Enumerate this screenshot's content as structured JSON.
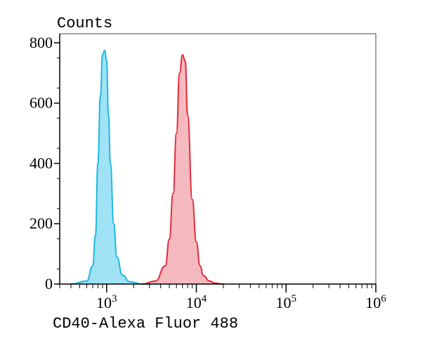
{
  "chart_data": {
    "type": "area",
    "title": "",
    "ylabel": "Counts",
    "xlabel": "CD40-Alexa Fluor 488",
    "x_scale": "log",
    "xlim": [
      300,
      1000000
    ],
    "ylim": [
      0,
      830
    ],
    "y_ticks": [
      {
        "value": 0,
        "label": "0"
      },
      {
        "value": 200,
        "label": "200"
      },
      {
        "value": 400,
        "label": "400"
      },
      {
        "value": 600,
        "label": "600"
      },
      {
        "value": 800,
        "label": "800"
      }
    ],
    "x_ticks": [
      {
        "value": 1000,
        "base": "10",
        "exp": "3"
      },
      {
        "value": 10000,
        "base": "10",
        "exp": "4"
      },
      {
        "value": 100000,
        "base": "10",
        "exp": "5"
      },
      {
        "value": 1000000,
        "base": "10",
        "exp": "6"
      }
    ],
    "grid": false,
    "legend": "none",
    "series": [
      {
        "color": "#1fb8e0",
        "fill": "#7fd9f2",
        "x": [
          400,
          600,
          700,
          750,
          800,
          850,
          900,
          950,
          1000,
          1050,
          1100,
          1200,
          1300,
          1500,
          1800,
          2500,
          4000
        ],
        "y": [
          0,
          10,
          60,
          160,
          400,
          620,
          760,
          775,
          740,
          560,
          400,
          200,
          90,
          30,
          8,
          0,
          0
        ]
      },
      {
        "color": "#e02b3a",
        "fill": "#f3a2aa",
        "x": [
          2500,
          3500,
          4500,
          5000,
          5500,
          6000,
          6500,
          7000,
          7500,
          8000,
          9000,
          10000,
          11000,
          12000,
          14000,
          16000,
          20000
        ],
        "y": [
          0,
          10,
          60,
          150,
          300,
          500,
          700,
          760,
          740,
          560,
          280,
          140,
          60,
          28,
          10,
          3,
          0
        ]
      }
    ]
  }
}
